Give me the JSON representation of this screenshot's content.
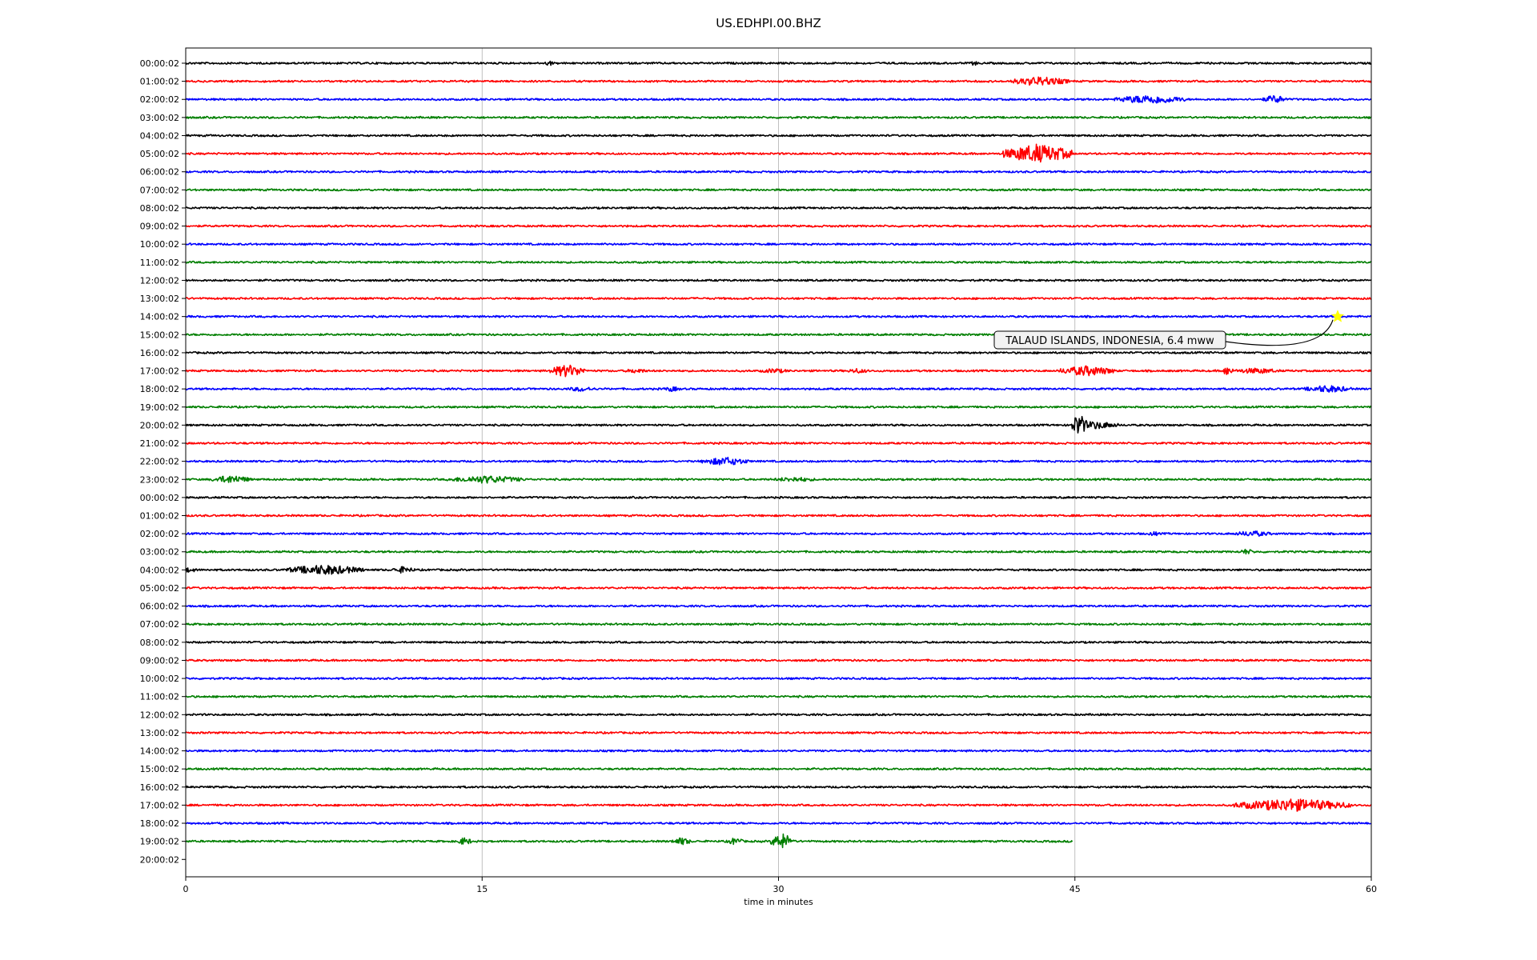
{
  "chart_data": {
    "type": "line",
    "title": "US.EDHPI.00.BHZ",
    "xlabel": "time in minutes",
    "ylabel": "",
    "xlim": [
      0,
      60
    ],
    "xticks": [
      0,
      15,
      30,
      45,
      60
    ],
    "grid": "vertical lines at x ticks",
    "trace_colors": [
      "#000000",
      "#ff0000",
      "#0000ff",
      "#007f00"
    ],
    "row_labels": [
      "00:00:02",
      "01:00:02",
      "02:00:02",
      "03:00:02",
      "04:00:02",
      "05:00:02",
      "06:00:02",
      "07:00:02",
      "08:00:02",
      "09:00:02",
      "10:00:02",
      "11:00:02",
      "12:00:02",
      "13:00:02",
      "14:00:02",
      "15:00:02",
      "16:00:02",
      "17:00:02",
      "18:00:02",
      "19:00:02",
      "20:00:02",
      "21:00:02",
      "22:00:02",
      "23:00:02",
      "00:00:02",
      "01:00:02",
      "02:00:02",
      "03:00:02",
      "04:00:02",
      "05:00:02",
      "06:00:02",
      "07:00:02",
      "08:00:02",
      "09:00:02",
      "10:00:02",
      "11:00:02",
      "12:00:02",
      "13:00:02",
      "14:00:02",
      "15:00:02",
      "16:00:02",
      "17:00:02",
      "18:00:02",
      "19:00:02",
      "20:00:02"
    ],
    "last_row_end_minute": 44.9,
    "bursts": [
      {
        "row": 0,
        "minute": 18.4,
        "amp": 0.35,
        "dur": 0.2
      },
      {
        "row": 0,
        "minute": 39.9,
        "amp": 0.3,
        "dur": 0.2
      },
      {
        "row": 1,
        "minute": 43.2,
        "amp": 0.55,
        "dur": 1.5
      },
      {
        "row": 2,
        "minute": 48.8,
        "amp": 0.55,
        "dur": 1.8
      },
      {
        "row": 2,
        "minute": 55.1,
        "amp": 0.5,
        "dur": 0.6
      },
      {
        "row": 5,
        "minute": 43.1,
        "amp": 1.1,
        "dur": 1.8
      },
      {
        "row": 17,
        "minute": 19.3,
        "amp": 0.75,
        "dur": 0.9
      },
      {
        "row": 17,
        "minute": 22.8,
        "amp": 0.3,
        "dur": 0.6
      },
      {
        "row": 17,
        "minute": 29.8,
        "amp": 0.3,
        "dur": 0.8
      },
      {
        "row": 17,
        "minute": 34.0,
        "amp": 0.3,
        "dur": 0.6
      },
      {
        "row": 17,
        "minute": 45.6,
        "amp": 0.6,
        "dur": 1.5
      },
      {
        "row": 17,
        "minute": 52.7,
        "amp": 0.55,
        "dur": 0.3
      },
      {
        "row": 17,
        "minute": 54.2,
        "amp": 0.35,
        "dur": 1.2
      },
      {
        "row": 18,
        "minute": 20.0,
        "amp": 0.3,
        "dur": 0.8
      },
      {
        "row": 18,
        "minute": 24.6,
        "amp": 0.3,
        "dur": 0.5
      },
      {
        "row": 18,
        "minute": 57.8,
        "amp": 0.45,
        "dur": 1.2
      },
      {
        "row": 20,
        "minute": 45.2,
        "amp": 1.35,
        "dur": 0.4
      },
      {
        "row": 20,
        "minute": 46.0,
        "amp": 0.45,
        "dur": 1.3
      },
      {
        "row": 22,
        "minute": 27.3,
        "amp": 0.5,
        "dur": 1.2
      },
      {
        "row": 23,
        "minute": 2.3,
        "amp": 0.5,
        "dur": 1.0
      },
      {
        "row": 23,
        "minute": 15.2,
        "amp": 0.45,
        "dur": 2.0
      },
      {
        "row": 23,
        "minute": 30.8,
        "amp": 0.3,
        "dur": 1.2
      },
      {
        "row": 26,
        "minute": 54.0,
        "amp": 0.35,
        "dur": 1.0
      },
      {
        "row": 26,
        "minute": 49.0,
        "amp": 0.3,
        "dur": 0.3
      },
      {
        "row": 27,
        "minute": 53.7,
        "amp": 0.35,
        "dur": 0.4
      },
      {
        "row": 28,
        "minute": 0.2,
        "amp": 0.3,
        "dur": 0.4
      },
      {
        "row": 28,
        "minute": 7.0,
        "amp": 0.6,
        "dur": 2.0
      },
      {
        "row": 28,
        "minute": 11.0,
        "amp": 0.4,
        "dur": 0.6
      },
      {
        "row": 41,
        "minute": 56.0,
        "amp": 0.75,
        "dur": 3.0
      },
      {
        "row": 43,
        "minute": 14.1,
        "amp": 0.45,
        "dur": 0.4
      },
      {
        "row": 43,
        "minute": 25.1,
        "amp": 0.45,
        "dur": 0.5
      },
      {
        "row": 43,
        "minute": 27.8,
        "amp": 0.45,
        "dur": 0.4
      },
      {
        "row": 43,
        "minute": 30.2,
        "amp": 0.9,
        "dur": 0.6
      }
    ],
    "annotations": [
      {
        "text": "TALAUD ISLANDS, INDONESIA, 6.4 mww",
        "row": 14,
        "minute": 58.3,
        "marker": "star",
        "marker_color": "#ffff00"
      }
    ]
  }
}
